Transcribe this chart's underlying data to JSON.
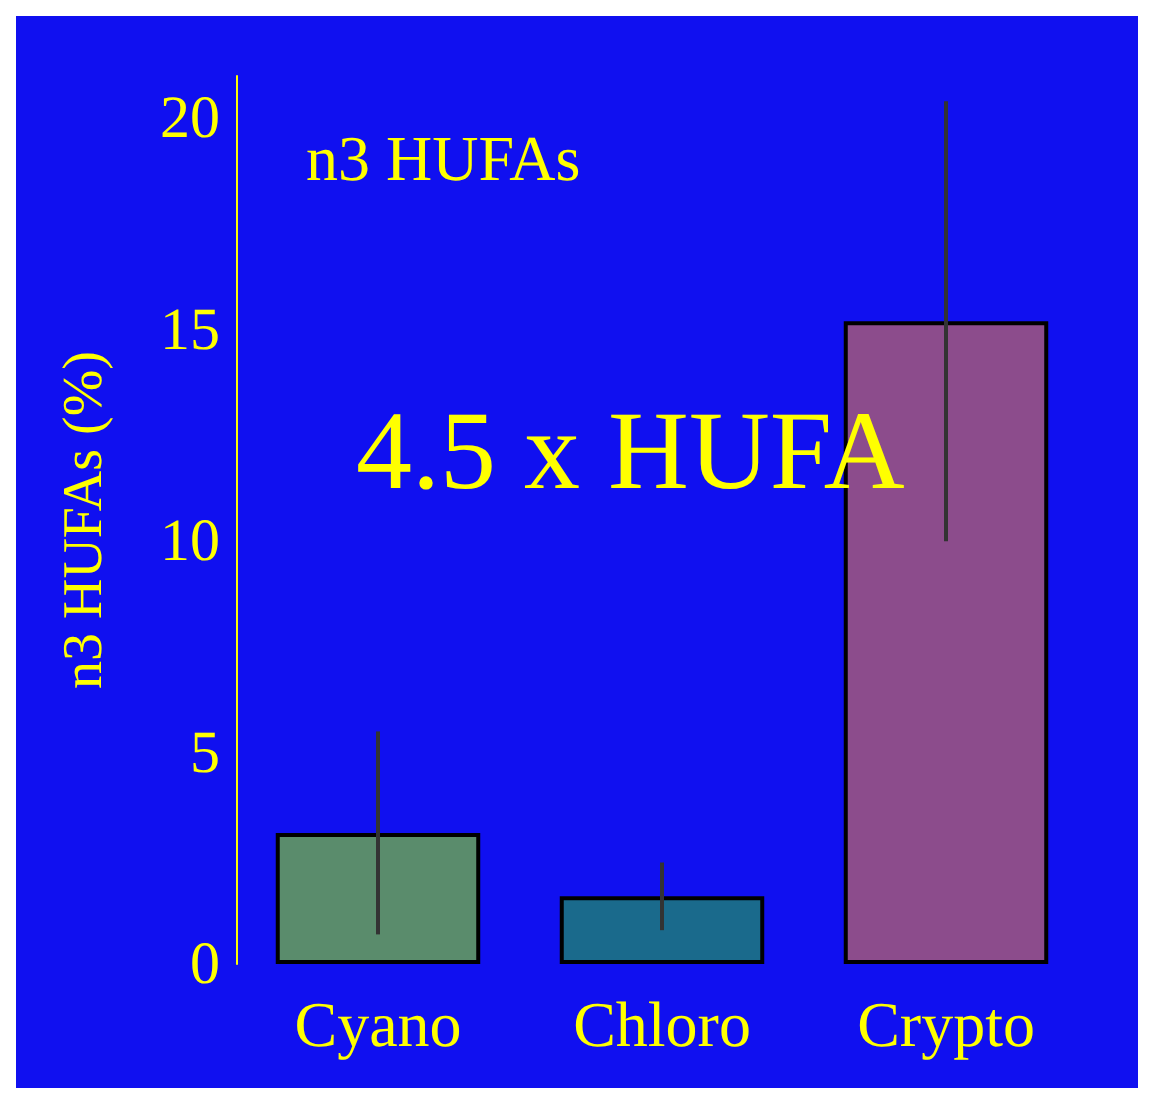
{
  "chart_data": {
    "type": "bar",
    "title": "n3 HUFAs",
    "ylabel": "n3 HUFAs (%)",
    "categories": [
      "Cyano",
      "Chloro",
      "Crypto"
    ],
    "values": [
      3.1,
      1.6,
      15.2
    ],
    "colors": [
      "#5a8c6c",
      "#1a6a8c",
      "#8c4c8c"
    ],
    "errors": [
      2.4,
      0.8,
      5.2
    ],
    "ylim": [
      0,
      21
    ],
    "yticks": [
      0,
      5,
      10,
      15,
      20
    ],
    "annotations": [
      "4.5 x HUFA"
    ]
  }
}
